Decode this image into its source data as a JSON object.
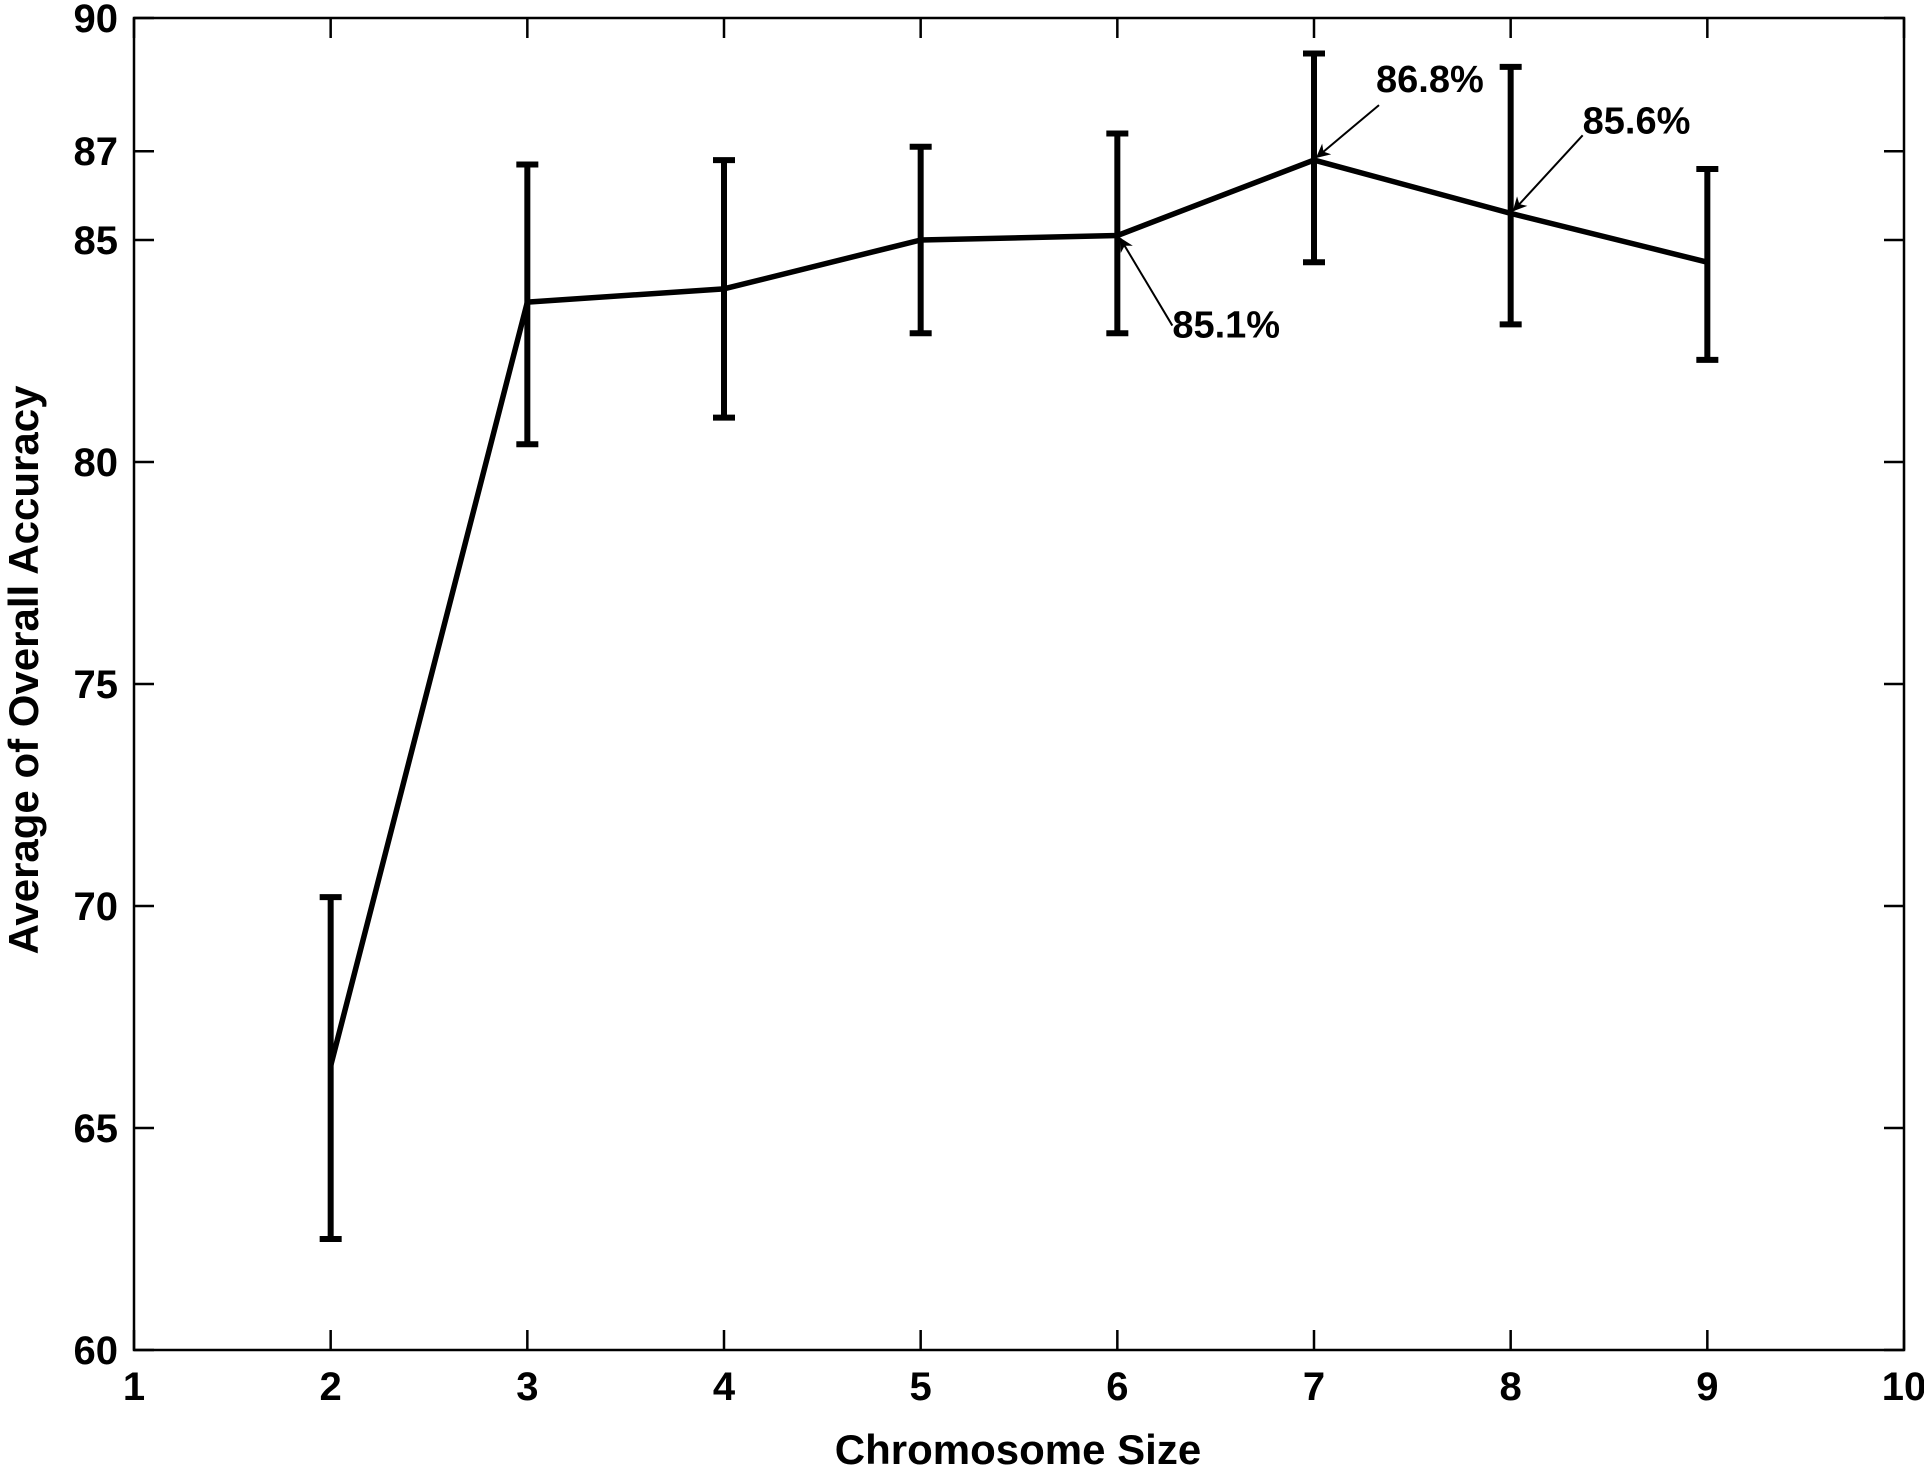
{
  "chart_data": {
    "type": "line",
    "title": "",
    "xlabel": "Chromosome Size",
    "ylabel": "Average of Overall Accuracy",
    "xlim": [
      1,
      10
    ],
    "ylim": [
      60,
      90
    ],
    "xticks": [
      1,
      2,
      3,
      4,
      5,
      6,
      7,
      8,
      9,
      10
    ],
    "yticks": [
      60,
      65,
      70,
      75,
      80,
      85,
      87,
      90
    ],
    "grid": false,
    "series": [
      {
        "name": "Average of Overall Accuracy",
        "x": [
          2,
          3,
          4,
          5,
          6,
          7,
          8,
          9
        ],
        "y": [
          66.4,
          83.6,
          83.9,
          85.0,
          85.1,
          86.8,
          85.6,
          84.5
        ],
        "err_low": [
          62.5,
          80.4,
          81.0,
          82.9,
          82.9,
          84.5,
          83.1,
          82.3
        ],
        "err_high": [
          70.2,
          86.7,
          86.8,
          87.1,
          87.4,
          89.2,
          88.9,
          86.6
        ]
      }
    ],
    "annotations": [
      {
        "text": "85.1%",
        "x": 6,
        "y": 85.1
      },
      {
        "text": "86.8%",
        "x": 7,
        "y": 86.8
      },
      {
        "text": "85.6%",
        "x": 8,
        "y": 85.6
      }
    ],
    "color": "#000000"
  }
}
